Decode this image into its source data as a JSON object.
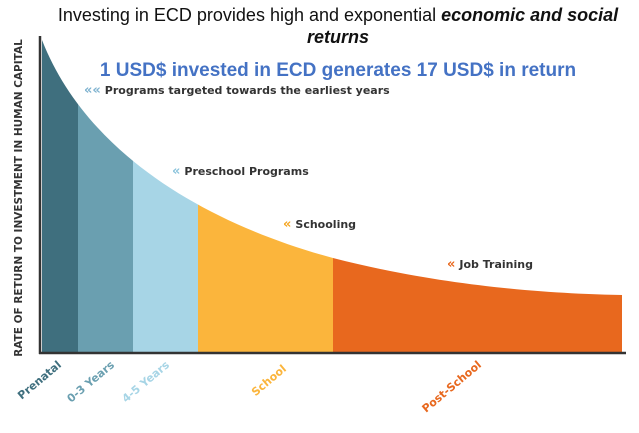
{
  "title": {
    "text": "Investing in ECD provides high and exponential ",
    "emphasis": "economic and social returns"
  },
  "subtitle": "1 USD$ invested in ECD generates 17 USD$ in return",
  "y_axis_label": "RATE OF RETURN TO INVESTMENT IN HUMAN CAPITAL",
  "stages": [
    {
      "label": "Prenatal",
      "color": "#3f6f7e"
    },
    {
      "label": "0-3 Years",
      "color": "#6a9fb0"
    },
    {
      "label": "4-5 Years",
      "color": "#a7d5e6"
    },
    {
      "label": "School",
      "color": "#fbb53c"
    },
    {
      "label": "Post-School",
      "color": "#e8681e"
    }
  ],
  "annotations": [
    {
      "marker": "««",
      "text": "Programs targeted towards the earliest years",
      "color": "#7fb3d0"
    },
    {
      "marker": "«",
      "text": "Preschool Programs",
      "color": "#8cc4dc"
    },
    {
      "marker": "«",
      "text": "Schooling",
      "color": "#f5a623"
    },
    {
      "marker": "«",
      "text": "Job Training",
      "color": "#e8681e"
    }
  ]
}
